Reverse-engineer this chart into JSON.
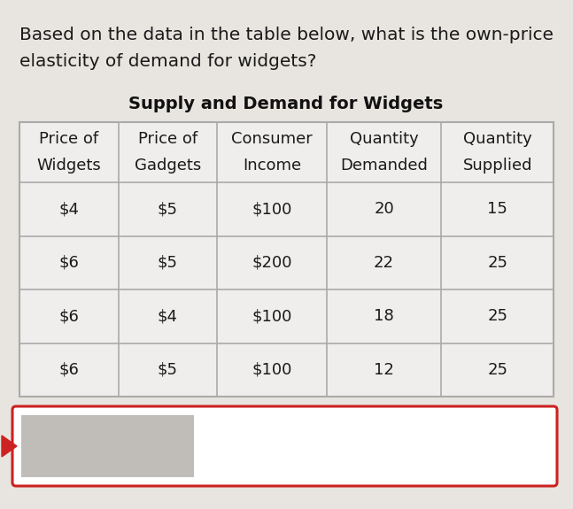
{
  "question_text_line1": "Based on the data in the table below, what is the own-price",
  "question_text_line2": "elasticity of demand for widgets?",
  "table_title": "Supply and Demand for Widgets",
  "col_headers": [
    [
      "Price of",
      "Widgets"
    ],
    [
      "Price of",
      "Gadgets"
    ],
    [
      "Consumer",
      "Income"
    ],
    [
      "Quantity",
      "Demanded"
    ],
    [
      "Quantity",
      "Supplied"
    ]
  ],
  "rows": [
    [
      "$4",
      "$5",
      "$100",
      "20",
      "15"
    ],
    [
      "$6",
      "$5",
      "$200",
      "22",
      "25"
    ],
    [
      "$6",
      "$4",
      "$100",
      "18",
      "25"
    ],
    [
      "$6",
      "$5",
      "$100",
      "12",
      "25"
    ]
  ],
  "bg_color": "#e8e4df",
  "table_bg": "#f0eeec",
  "grid_color": "#aaaaaa",
  "text_color": "#1a1a1a",
  "title_color": "#111111",
  "answer_box_color": "#cc2222",
  "answer_box_fill": "#c0bcb8",
  "answer_box_bg": "#ffffff",
  "question_fontsize": 14.5,
  "title_fontsize": 14.0,
  "table_fontsize": 13.0,
  "fig_width": 6.47,
  "fig_height": 5.75,
  "dpi": 100
}
